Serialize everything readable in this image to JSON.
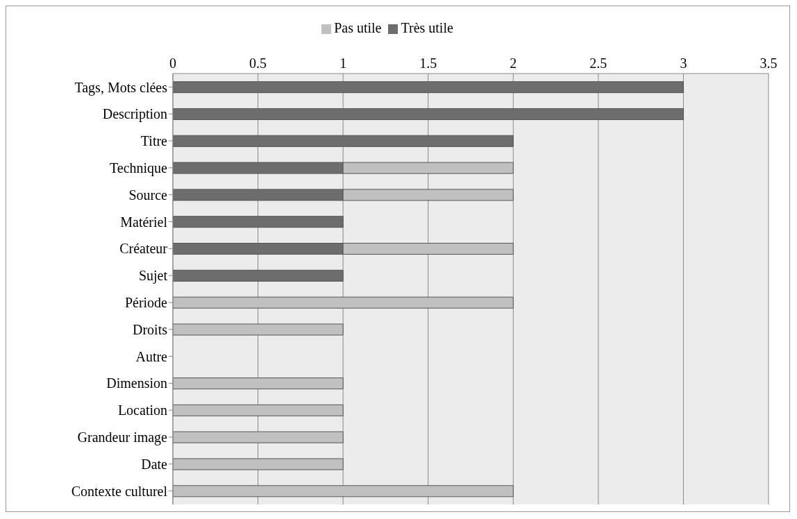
{
  "chart_data": {
    "type": "bar",
    "orientation": "horizontal",
    "stacked": true,
    "categories": [
      "Tags, Mots clées",
      "Description",
      "Titre",
      "Technique",
      "Source",
      "Matériel",
      "Créateur",
      "Sujet",
      "Période",
      "Droits",
      "Autre",
      "Dimension",
      "Location",
      "Grandeur image",
      "Date",
      "Contexte culturel"
    ],
    "series": [
      {
        "name": "Très utile",
        "color": "#6d6d6d",
        "values": [
          3,
          3,
          2,
          1,
          1,
          1,
          1,
          1,
          0,
          0,
          0,
          0,
          0,
          0,
          0,
          0
        ]
      },
      {
        "name": "Pas utile",
        "color": "#c0c0c0",
        "values": [
          0,
          0,
          0,
          1,
          1,
          0,
          1,
          0,
          2,
          1,
          0,
          1,
          1,
          1,
          1,
          2
        ]
      }
    ],
    "xlim": [
      0,
      3.5
    ],
    "xticks": [
      0,
      0.5,
      1,
      1.5,
      2,
      2.5,
      3,
      3.5
    ],
    "grid": "x",
    "legend": "top"
  }
}
